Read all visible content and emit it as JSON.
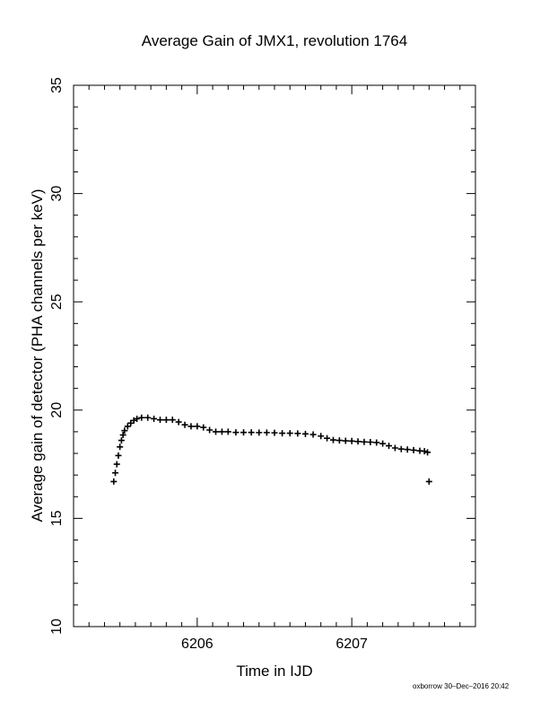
{
  "chart_data": {
    "type": "scatter",
    "title": "Average Gain of JMX1, revolution 1764",
    "xlabel": "Time in IJD",
    "ylabel": "Average gain of detector (PHA channels per keV)",
    "xlim": [
      6205.2,
      6207.8
    ],
    "ylim": [
      10,
      35
    ],
    "x_ticks": [
      6206,
      6207
    ],
    "x_tick_labels": [
      "6206",
      "6207"
    ],
    "y_ticks": [
      10,
      15,
      20,
      25,
      30,
      35
    ],
    "y_tick_labels": [
      "10",
      "15",
      "20",
      "25",
      "30",
      "35"
    ],
    "marker": "+",
    "grid": false,
    "series": [
      {
        "points": [
          [
            6205.46,
            16.7
          ],
          [
            6205.47,
            17.1
          ],
          [
            6205.48,
            17.5
          ],
          [
            6205.49,
            17.9
          ],
          [
            6205.5,
            18.3
          ],
          [
            6205.51,
            18.6
          ],
          [
            6205.52,
            18.85
          ],
          [
            6205.53,
            19.05
          ],
          [
            6205.55,
            19.25
          ],
          [
            6205.57,
            19.4
          ],
          [
            6205.59,
            19.52
          ],
          [
            6205.61,
            19.6
          ],
          [
            6205.64,
            19.65
          ],
          [
            6205.68,
            19.65
          ],
          [
            6205.72,
            19.6
          ],
          [
            6205.76,
            19.55
          ],
          [
            6205.8,
            19.55
          ],
          [
            6205.84,
            19.55
          ],
          [
            6205.88,
            19.45
          ],
          [
            6205.92,
            19.32
          ],
          [
            6205.96,
            19.25
          ],
          [
            6206.0,
            19.25
          ],
          [
            6206.04,
            19.2
          ],
          [
            6206.08,
            19.08
          ],
          [
            6206.12,
            19.0
          ],
          [
            6206.16,
            19.0
          ],
          [
            6206.2,
            19.0
          ],
          [
            6206.25,
            18.97
          ],
          [
            6206.3,
            18.97
          ],
          [
            6206.35,
            18.97
          ],
          [
            6206.4,
            18.96
          ],
          [
            6206.45,
            18.96
          ],
          [
            6206.5,
            18.95
          ],
          [
            6206.55,
            18.93
          ],
          [
            6206.6,
            18.93
          ],
          [
            6206.65,
            18.92
          ],
          [
            6206.7,
            18.9
          ],
          [
            6206.75,
            18.87
          ],
          [
            6206.8,
            18.8
          ],
          [
            6206.84,
            18.7
          ],
          [
            6206.88,
            18.62
          ],
          [
            6206.92,
            18.6
          ],
          [
            6206.96,
            18.58
          ],
          [
            6207.0,
            18.57
          ],
          [
            6207.04,
            18.55
          ],
          [
            6207.08,
            18.53
          ],
          [
            6207.12,
            18.52
          ],
          [
            6207.16,
            18.5
          ],
          [
            6207.2,
            18.45
          ],
          [
            6207.24,
            18.35
          ],
          [
            6207.28,
            18.25
          ],
          [
            6207.32,
            18.2
          ],
          [
            6207.36,
            18.18
          ],
          [
            6207.4,
            18.15
          ],
          [
            6207.44,
            18.12
          ],
          [
            6207.47,
            18.1
          ],
          [
            6207.49,
            18.05
          ],
          [
            6207.5,
            16.7
          ]
        ]
      }
    ]
  },
  "footer": "oxborrow 30–Dec–2016 20:42"
}
